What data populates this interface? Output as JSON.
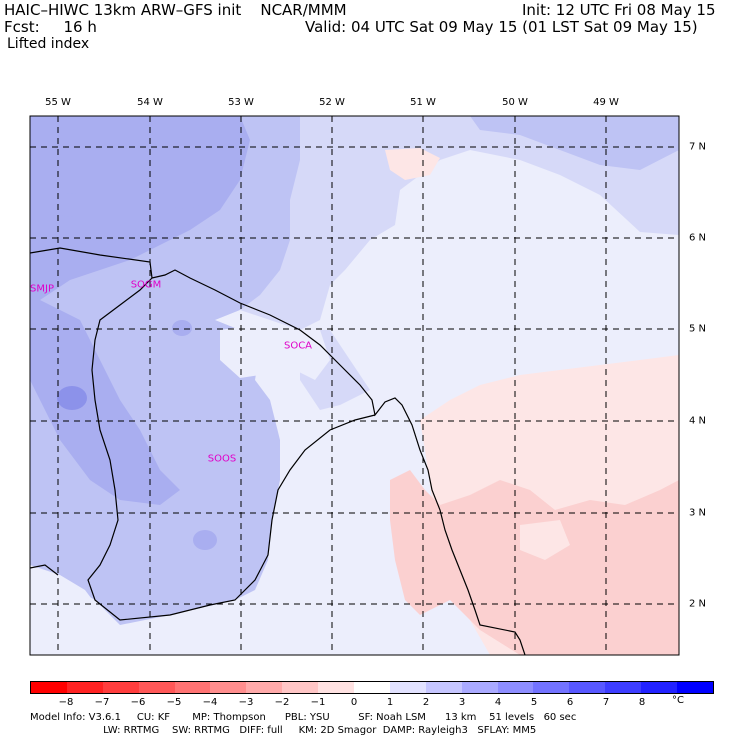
{
  "header": {
    "title": "HAIC–HIWC 13km ARW–GFS init    NCAR/MMM",
    "fcst": "Fcst:     16 h",
    "field": "Lifted index",
    "init": "Init: 12 UTC Fri 08 May 15",
    "valid": "Valid: 04 UTC Sat 09 May 15 (01 LST Sat 09 May 15)"
  },
  "map": {
    "lon_labels": [
      "55 W",
      "54 W",
      "53 W",
      "52 W",
      "51 W",
      "50 W",
      "49 W"
    ],
    "lat_labels": [
      "7 N",
      "6 N",
      "5 N",
      "4 N",
      "3 N",
      "2 N"
    ],
    "stations": [
      "SMJP",
      "SOGM",
      "SOCA",
      "SOOS"
    ],
    "colors": {
      "ocean_light": "#eceefc",
      "blue_1": "#d6d9f8",
      "blue_2": "#bec3f4",
      "blue_3": "#a9aef0",
      "blue_4": "#8c92ea",
      "pink_1": "#fde6e6",
      "pink_2": "#fbd0d0",
      "white": "#ffffff"
    }
  },
  "colorbar": {
    "ticks": [
      "−8",
      "−7",
      "−6",
      "−5",
      "−4",
      "−3",
      "−2",
      "−1",
      "0",
      "1",
      "2",
      "3",
      "4",
      "5",
      "6",
      "7",
      "8"
    ],
    "unit": "°C",
    "colors": [
      "#ff0000",
      "#ff2222",
      "#ff3d3d",
      "#ff5858",
      "#ff7373",
      "#ff8e8e",
      "#ffaaaa",
      "#ffc6c6",
      "#ffe2e2",
      "#ffffff",
      "#e2e2ff",
      "#c6c6ff",
      "#aaaaff",
      "#8e8eff",
      "#7373ff",
      "#5858ff",
      "#3d3dff",
      "#2222ff",
      "#0000ff"
    ]
  },
  "model_info": {
    "line1": "Model Info: V3.6.1     CU: KF       MP: Thompson      PBL: YSU         SF: Noah LSM      13 km    51 levels   60 sec",
    "line2": "                       LW: RRTMG    SW: RRTMG   DIFF: full     KM: 2D Smagor  DAMP: Rayleigh3   SFLAY: MM5"
  }
}
